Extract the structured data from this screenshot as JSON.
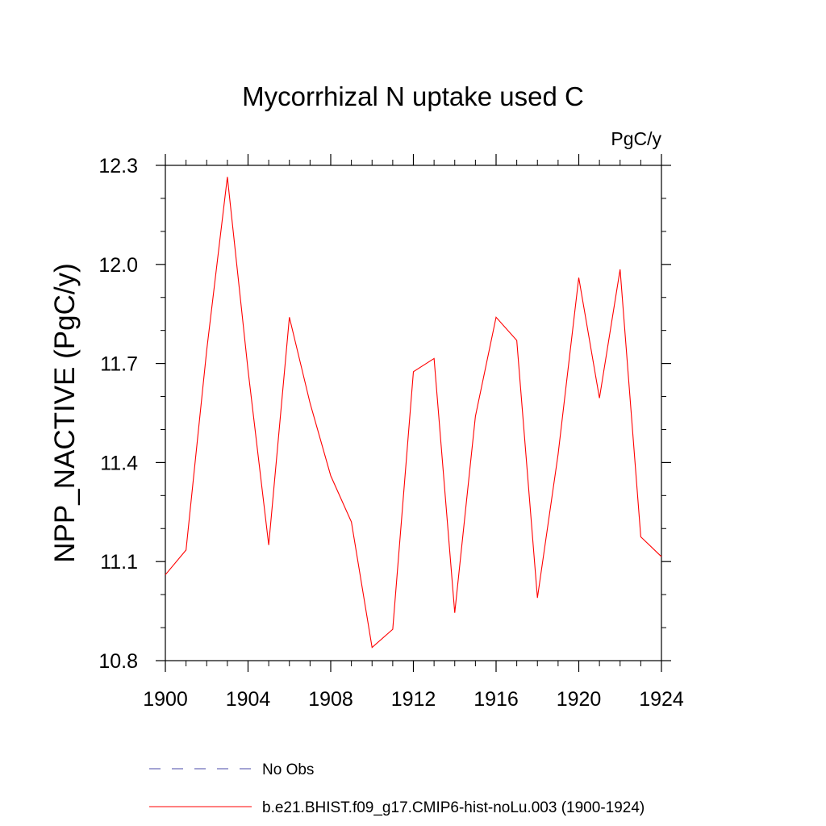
{
  "chart_data": {
    "type": "line",
    "title": "Mycorrhizal N uptake used C",
    "units_label": "PgC/y",
    "ylabel": "NPP_NACTIVE  (PgC/y)",
    "xlabel": "",
    "xlim": [
      1900,
      1924
    ],
    "ylim": [
      10.8,
      12.3
    ],
    "x_ticks": [
      1900,
      1904,
      1908,
      1912,
      1916,
      1920,
      1924
    ],
    "x_tick_labels": [
      "1900",
      "1904",
      "1908",
      "1912",
      "1916",
      "1920",
      "1924"
    ],
    "y_ticks": [
      10.8,
      11.1,
      11.4,
      11.7,
      12.0,
      12.3
    ],
    "y_tick_labels": [
      "10.8",
      "11.1",
      "11.4",
      "11.7",
      "12.0",
      "12.3"
    ],
    "y_minor_step": 0.1,
    "x_minor_step": 1,
    "grid": false,
    "legend_position": "bottom",
    "series": [
      {
        "name": "b.e21.BHIST.f09_g17.CMIP6-hist-noLu.003 (1900-1924)",
        "color": "#ff0000",
        "style": "solid",
        "x": [
          1900,
          1901,
          1902,
          1903,
          1904,
          1905,
          1906,
          1907,
          1908,
          1909,
          1910,
          1911,
          1912,
          1913,
          1914,
          1915,
          1916,
          1917,
          1918,
          1919,
          1920,
          1921,
          1922,
          1923,
          1924
        ],
        "y": [
          11.06,
          11.135,
          11.74,
          12.265,
          11.68,
          11.15,
          11.84,
          11.58,
          11.36,
          11.22,
          10.84,
          10.895,
          11.675,
          11.715,
          10.945,
          11.54,
          11.84,
          11.77,
          10.99,
          11.425,
          11.96,
          11.595,
          11.985,
          11.175,
          11.115
        ]
      }
    ],
    "legend": [
      {
        "label": "No Obs",
        "color": "#4a4aa8",
        "style": "dashed"
      },
      {
        "label": "b.e21.BHIST.f09_g17.CMIP6-hist-noLu.003 (1900-1924)",
        "color": "#ff0000",
        "style": "solid"
      }
    ]
  }
}
